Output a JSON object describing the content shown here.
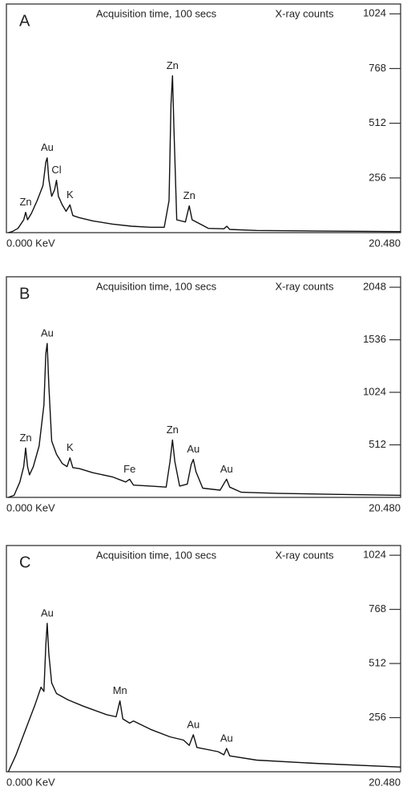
{
  "chart_data": [
    {
      "type": "line",
      "label": "A",
      "subtitle": "Acquisition time, 100 secs",
      "y_label": "X-ray counts",
      "color": "#111111",
      "x": [
        0.1,
        0.3,
        0.6,
        0.9,
        1.0,
        1.1,
        1.3,
        1.6,
        1.9,
        2.05,
        2.12,
        2.2,
        2.35,
        2.5,
        2.6,
        2.7,
        2.9,
        3.1,
        3.3,
        3.45,
        3.8,
        4.5,
        5.5,
        6.5,
        7.5,
        8.2,
        8.45,
        8.55,
        8.63,
        8.7,
        8.85,
        9.3,
        9.5,
        9.65,
        10.5,
        11.3,
        11.45,
        11.6,
        13,
        16,
        20.48
      ],
      "values": [
        0,
        5,
        20,
        60,
        95,
        60,
        90,
        150,
        220,
        330,
        350,
        250,
        170,
        200,
        245,
        170,
        130,
        100,
        130,
        80,
        70,
        55,
        40,
        30,
        25,
        25,
        150,
        600,
        734,
        500,
        60,
        50,
        125,
        60,
        20,
        18,
        30,
        15,
        10,
        8,
        5
      ],
      "xlim": [
        0,
        20.48
      ],
      "xticks": [
        {
          "value": 0,
          "label": "0.000 KeV"
        },
        {
          "value": 20.48,
          "label": "20.480"
        }
      ],
      "ylim": [
        0,
        1070
      ],
      "yticks": [
        256,
        512,
        768,
        1024
      ],
      "annotations": [
        {
          "text": "Zn",
          "x": 1.0
        },
        {
          "text": "Au",
          "x": 2.12
        },
        {
          "text": "Cl",
          "x": 2.6
        },
        {
          "text": "K",
          "x": 3.3
        },
        {
          "text": "Zn",
          "x": 8.63
        },
        {
          "text": "Zn",
          "x": 9.5
        }
      ]
    },
    {
      "type": "line",
      "label": "B",
      "subtitle": "Acquisition time, 100 secs",
      "y_label": "X-ray counts",
      "color": "#111111",
      "x": [
        0.1,
        0.4,
        0.7,
        0.9,
        1.0,
        1.1,
        1.2,
        1.4,
        1.7,
        1.95,
        2.05,
        2.12,
        2.2,
        2.35,
        2.6,
        2.9,
        3.15,
        3.3,
        3.45,
        3.8,
        4.5,
        5.5,
        6.2,
        6.4,
        6.6,
        7.5,
        8.3,
        8.5,
        8.63,
        8.75,
        9.0,
        9.4,
        9.6,
        9.71,
        9.85,
        10.2,
        11.1,
        11.35,
        11.44,
        11.6,
        12.2,
        14,
        17,
        20.48
      ],
      "values": [
        0,
        20,
        150,
        300,
        480,
        300,
        220,
        300,
        500,
        900,
        1400,
        1500,
        1100,
        550,
        420,
        330,
        300,
        385,
        290,
        280,
        240,
        200,
        150,
        177,
        120,
        110,
        100,
        350,
        560,
        350,
        110,
        130,
        320,
        370,
        250,
        90,
        70,
        150,
        177,
        100,
        50,
        40,
        30,
        20
      ],
      "xlim": [
        0,
        20.48
      ],
      "xticks": [
        {
          "value": 0,
          "label": "0.000 KeV"
        },
        {
          "value": 20.48,
          "label": "20.480"
        }
      ],
      "ylim": [
        0,
        2150
      ],
      "yticks": [
        512,
        1024,
        1536,
        2048
      ],
      "annotations": [
        {
          "text": "Zn",
          "x": 1.0
        },
        {
          "text": "Au",
          "x": 2.12
        },
        {
          "text": "K",
          "x": 3.3
        },
        {
          "text": "Fe",
          "x": 6.4
        },
        {
          "text": "Zn",
          "x": 8.63
        },
        {
          "text": "Au",
          "x": 9.71
        },
        {
          "text": "Au",
          "x": 11.44
        }
      ]
    },
    {
      "type": "line",
      "label": "C",
      "subtitle": "Acquisition time, 100 secs",
      "y_label": "X-ray counts",
      "color": "#111111",
      "x": [
        0.1,
        0.5,
        1.0,
        1.5,
        1.8,
        1.95,
        2.05,
        2.12,
        2.2,
        2.35,
        2.6,
        3.2,
        4.0,
        5.2,
        5.7,
        5.9,
        6.05,
        6.4,
        6.6,
        7.5,
        8.5,
        9.2,
        9.5,
        9.71,
        9.9,
        11,
        11.3,
        11.44,
        11.6,
        13,
        16,
        20.48
      ],
      "values": [
        0,
        80,
        200,
        320,
        400,
        380,
        600,
        702,
        560,
        420,
        370,
        340,
        310,
        270,
        260,
        335,
        250,
        230,
        240,
        200,
        165,
        150,
        125,
        175,
        115,
        95,
        80,
        110,
        75,
        55,
        40,
        22
      ],
      "xlim": [
        0,
        20.48
      ],
      "xticks": [
        {
          "value": 0,
          "label": "0.000 KeV"
        },
        {
          "value": 20.48,
          "label": "20.480"
        }
      ],
      "ylim": [
        0,
        1070
      ],
      "yticks": [
        256,
        512,
        768,
        1024
      ],
      "annotations": [
        {
          "text": "Au",
          "x": 2.12
        },
        {
          "text": "Mn",
          "x": 5.9
        },
        {
          "text": "Au",
          "x": 9.71
        },
        {
          "text": "Au",
          "x": 11.44
        }
      ]
    }
  ]
}
